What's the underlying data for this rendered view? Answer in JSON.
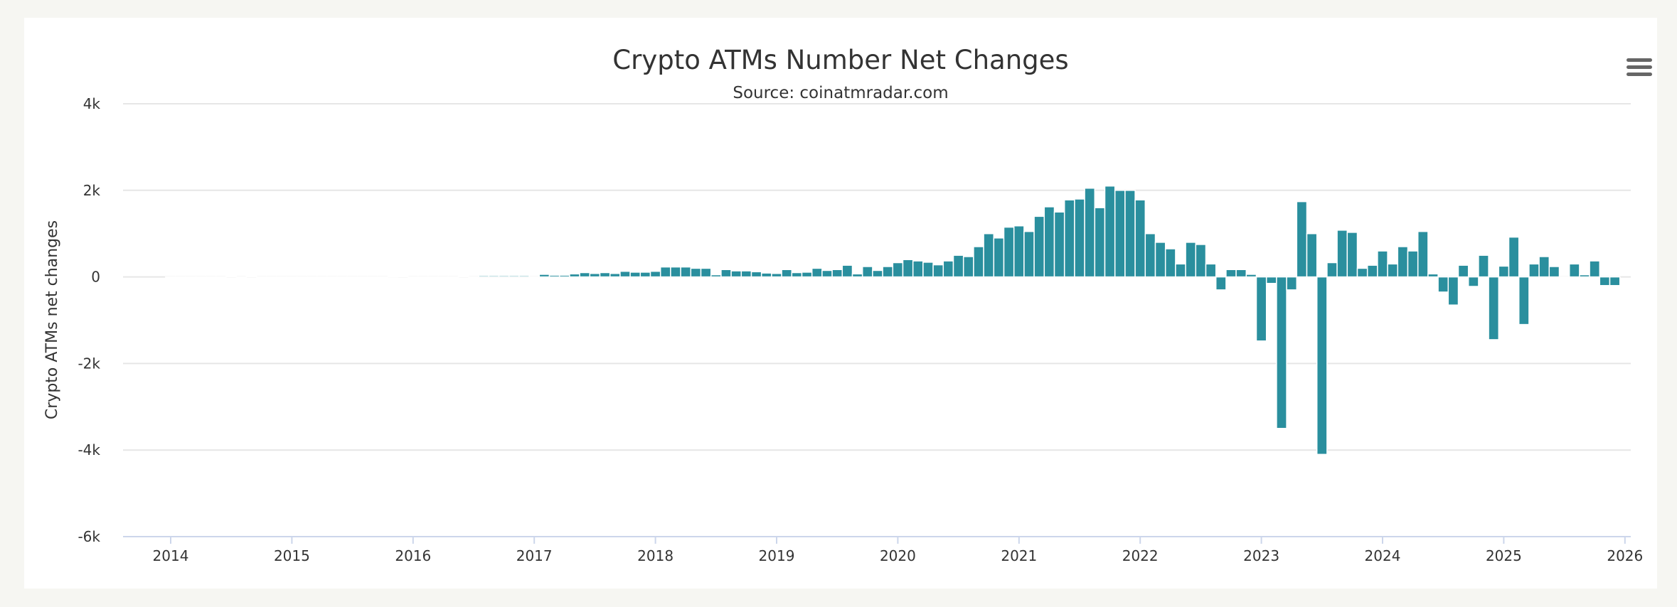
{
  "chart_data": {
    "type": "bar",
    "title": "Crypto ATMs Number Net Changes",
    "subtitle": "Source: coinatmradar.com",
    "ylabel": "Crypto ATMs net changes",
    "xlabel": "",
    "ylim": [
      -6000,
      4000
    ],
    "y_ticks": [
      "4k",
      "2k",
      "0",
      "-2k",
      "-4k",
      "-6k"
    ],
    "y_tick_values": [
      4000,
      2000,
      0,
      -2000,
      -4000,
      -6000
    ],
    "x_ticks": [
      "2014",
      "2015",
      "2016",
      "2017",
      "2018",
      "2019",
      "2020",
      "2021",
      "2022",
      "2023",
      "2024",
      "2025",
      "2026"
    ],
    "grid": true,
    "color": "#2a8f9e",
    "start_month": "2014-01",
    "values": [
      0,
      0,
      0,
      0,
      0,
      0,
      20,
      0,
      20,
      0,
      0,
      0,
      0,
      0,
      0,
      0,
      0,
      0,
      0,
      0,
      0,
      0,
      5,
      20,
      0,
      0,
      0,
      0,
      0,
      20,
      0,
      30,
      30,
      30,
      30,
      30,
      0,
      60,
      40,
      40,
      70,
      100,
      80,
      100,
      80,
      130,
      110,
      110,
      130,
      230,
      230,
      230,
      200,
      200,
      50,
      170,
      140,
      140,
      120,
      90,
      80,
      170,
      100,
      110,
      200,
      150,
      170,
      270,
      70,
      240,
      150,
      240,
      330,
      400,
      370,
      340,
      280,
      370,
      500,
      470,
      700,
      1000,
      900,
      1150,
      1180,
      1050,
      1400,
      1620,
      1500,
      1780,
      1800,
      2050,
      1600,
      2100,
      2000,
      2000,
      1780,
      1000,
      800,
      650,
      300,
      800,
      750,
      300,
      -300,
      170,
      170,
      60,
      -1480,
      -150,
      -3500,
      -300,
      1740,
      1000,
      -4100,
      330,
      1080,
      1030,
      200,
      270,
      600,
      300,
      700,
      600,
      1050,
      70,
      -350,
      -650,
      270,
      -220,
      500,
      -1450,
      250,
      920,
      -1100,
      300,
      470,
      240,
      0,
      300,
      50,
      370,
      -200,
      -200
    ]
  },
  "menu": {
    "icon": "hamburger-menu-icon"
  }
}
